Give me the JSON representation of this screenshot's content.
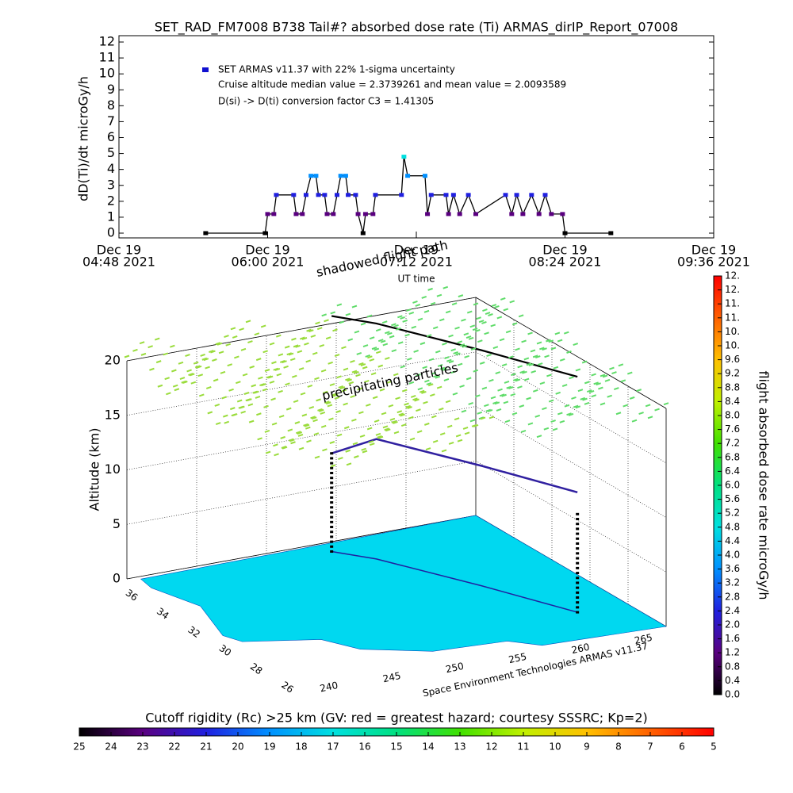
{
  "chart_data": [
    {
      "type": "line",
      "title": "SET_RAD_FM7008  B738 Tail#? absorbed dose rate (Ti) ARMAS_dirIP_Report_07008",
      "ylabel": "dD(Ti)/dt microGy/h",
      "xlabel": "UT time",
      "annotations": [
        "Cruise altitude median value = 2.3739261 and mean value = 2.0093589",
        "D(si) -> D(ti) conversion factor C3 = 1.41305"
      ],
      "x": [
        5.5,
        5.98,
        6.0,
        6.05,
        6.07,
        6.21,
        6.23,
        6.28,
        6.31,
        6.35,
        6.39,
        6.41,
        6.46,
        6.48,
        6.53,
        6.56,
        6.59,
        6.63,
        6.65,
        6.71,
        6.73,
        6.77,
        6.79,
        6.85,
        6.87,
        7.08,
        7.1,
        7.13,
        7.27,
        7.29,
        7.32,
        7.44,
        7.46,
        7.5,
        7.55,
        7.62,
        7.68,
        7.92,
        7.97,
        8.01,
        8.06,
        8.13,
        8.19,
        8.24,
        8.29,
        8.38,
        8.4,
        8.77
      ],
      "series": [
        {
          "name": "SET ARMAS v11.37 with 22% 1-sigma uncertainty",
          "color": "#1010d0",
          "values": [
            0,
            0,
            1.2,
            1.2,
            2.4,
            2.4,
            1.2,
            1.2,
            2.4,
            3.6,
            3.6,
            2.4,
            2.4,
            1.2,
            1.2,
            2.4,
            3.6,
            3.6,
            2.4,
            2.4,
            1.2,
            0,
            1.2,
            1.2,
            2.4,
            2.4,
            4.8,
            3.6,
            3.6,
            1.2,
            2.4,
            2.4,
            1.2,
            2.4,
            1.2,
            2.4,
            1.2,
            2.4,
            1.2,
            2.4,
            1.2,
            2.4,
            1.2,
            2.4,
            1.2,
            1.2,
            0,
            0
          ]
        }
      ],
      "xlim": [
        4.8,
        9.6
      ],
      "xticks": [
        {
          "value": 4.8,
          "label": [
            "Dec 19",
            "04:48 2021"
          ]
        },
        {
          "value": 6.0,
          "label": [
            "Dec 19",
            "06:00 2021"
          ]
        },
        {
          "value": 7.2,
          "label": [
            "Dec 19",
            "07:12 2021"
          ]
        },
        {
          "value": 8.4,
          "label": [
            "Dec 19",
            "08:24 2021"
          ]
        },
        {
          "value": 9.6,
          "label": [
            "Dec 19",
            "09:36 2021"
          ]
        }
      ],
      "ylim": [
        0,
        12
      ],
      "yticks": [
        0,
        1,
        2,
        3,
        4,
        5,
        6,
        7,
        8,
        9,
        10,
        11,
        12
      ],
      "colormap": [
        "#000000",
        "#5a0080",
        "#2020e0",
        "#0090ff",
        "#00e0e0",
        "#00e080",
        "#40e000",
        "#c0f000",
        "#ffc000",
        "#ff6000",
        "#ff0000"
      ]
    },
    {
      "type": "surface3d",
      "zlabel": "Altitude (km)",
      "zlim": [
        0,
        20
      ],
      "zticks": [
        0,
        5,
        10,
        15,
        20
      ],
      "ylim": [
        36.6,
        25.4
      ],
      "yticks": [
        36,
        34,
        32,
        30,
        28,
        26
      ],
      "xlim": [
        237.8,
        266.8
      ],
      "xticks": [
        240,
        245,
        250,
        255,
        260,
        265
      ],
      "annotations": [
        "shadowed flight path",
        "precipitating particles"
      ],
      "footer": "Space Environment Technologies ARMAS v11.37"
    },
    {
      "type": "colorbar",
      "label": "flight absorbed dose rate microGy/h",
      "ylim": [
        0,
        12
      ],
      "yticks": [
        {
          "value": 0,
          "label": "0.0"
        },
        0.4,
        0.8,
        1.2,
        1.6,
        {
          "value": 2,
          "label": "2.0"
        },
        2.4,
        2.8,
        3.2,
        3.6,
        {
          "value": 4,
          "label": "4.0"
        },
        4.4,
        4.8,
        5.2,
        5.6,
        {
          "value": 6,
          "label": "6.0"
        },
        6.4,
        6.8,
        7.2,
        7.6,
        {
          "value": 8,
          "label": "8.0"
        },
        8.4,
        8.8,
        9.2,
        9.6,
        {
          "value": 10,
          "label": "10."
        },
        {
          "value": 10.4,
          "label": "10."
        },
        {
          "value": 10.8,
          "label": "11."
        },
        {
          "value": 11.2,
          "label": "11."
        },
        {
          "value": 11.6,
          "label": "12."
        },
        {
          "value": 12,
          "label": "12."
        }
      ]
    },
    {
      "type": "colorbar-h",
      "title": "Cutoff rigidity (Rc) >25 km (GV: red = greatest hazard; courtesy SSSRC; Kp=2)",
      "xlim": [
        25,
        5
      ],
      "xticks": [
        25,
        24,
        23,
        22,
        21,
        20,
        19,
        18,
        17,
        16,
        15,
        14,
        13,
        12,
        11,
        10,
        9,
        8,
        7,
        6,
        5
      ]
    }
  ]
}
